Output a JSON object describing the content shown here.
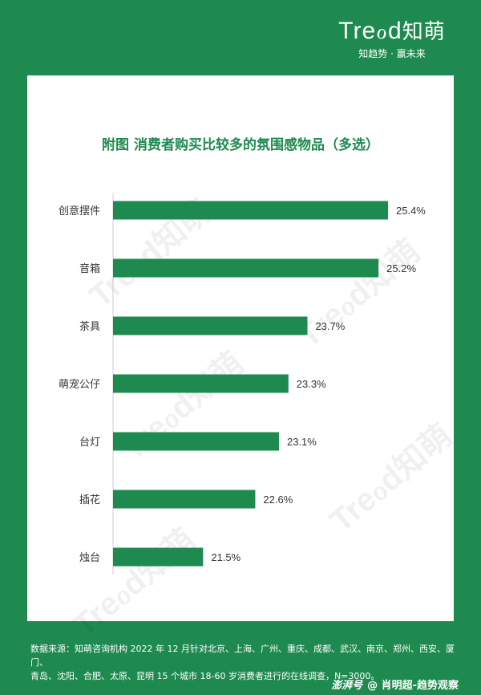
{
  "brand": {
    "logo_latin": "Treℴd",
    "logo_cn": "知萌",
    "slogan": "知趋势 · 赢未来"
  },
  "chart_data": {
    "type": "bar",
    "orientation": "horizontal",
    "title": "附图 消费者购买比较多的氛围感物品（多选）",
    "categories": [
      "创意摆件",
      "音箱",
      "茶具",
      "萌宠公仔",
      "台灯",
      "插花",
      "烛台"
    ],
    "values": [
      25.4,
      25.2,
      23.7,
      23.3,
      23.1,
      22.6,
      21.5
    ],
    "value_labels": [
      "25.4%",
      "25.2%",
      "23.7%",
      "23.3%",
      "23.1%",
      "22.6%",
      "21.5%"
    ],
    "xlim": [
      19.6,
      25.4
    ],
    "bar_color": "#1e8a4f",
    "grid": false,
    "legend": "none"
  },
  "footer": {
    "source_line1": "数据来源：知萌咨询机构 2022 年 12 月针对北京、上海、广州、重庆、成都、武汉、南京、郑州、西安、厦门、",
    "source_line2": "青岛、沈阳、合肥、太原、昆明 15 个城市 18-60 岁消费者进行的在线调查，N=3000。",
    "attrib_site": "澎湃号",
    "attrib_author": "@ 肖明超-趋势观察"
  },
  "watermark_text": "Treℴd知萌"
}
